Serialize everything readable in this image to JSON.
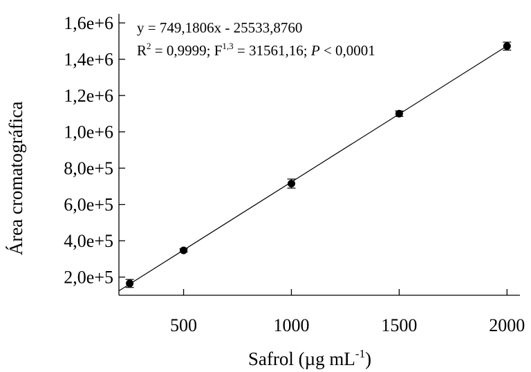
{
  "chart_data": {
    "type": "scatter",
    "title": "",
    "xlabel": "Safrol (µg mL",
    "xlabel_sup": "-1",
    "xlabel_close": ")",
    "ylabel": "Área cromatográfica",
    "xlim": [
      200,
      2060
    ],
    "ylim": [
      100000,
      1650000
    ],
    "x_ticks": [
      500,
      1000,
      1500,
      2000
    ],
    "x_tick_labels": [
      "500",
      "1000",
      "1500",
      "2000"
    ],
    "y_ticks": [
      200000,
      400000,
      600000,
      800000,
      1000000,
      1200000,
      1400000,
      1600000
    ],
    "y_tick_labels": [
      "2,0e+5",
      "4,0e+5",
      "6,0e+5",
      "8,0e+5",
      "1,0e+6",
      "1,2e+6",
      "1,4e+6",
      "1,6e+6"
    ],
    "grid": false,
    "series": [
      {
        "x": [
          250,
          500,
          1000,
          1500,
          2000
        ],
        "y": [
          165000,
          347000,
          715000,
          1100000,
          1472000
        ],
        "error": [
          22000,
          9000,
          25000,
          15000,
          22000
        ],
        "marker": "circle",
        "color": "#000000"
      }
    ],
    "fit": {
      "slope": 749.1806,
      "intercept": -25533.876,
      "x_range": [
        200,
        2000
      ]
    },
    "annotations": {
      "equation": "y = 749,1806x - 25533,8760",
      "r_label": "R",
      "r_sup": "2",
      "r_value": " = 0,9999; F",
      "f_sup": "1,3",
      "f_value": " = 31561,16; ",
      "p_label": "P",
      "p_value": " < 0,0001"
    }
  }
}
